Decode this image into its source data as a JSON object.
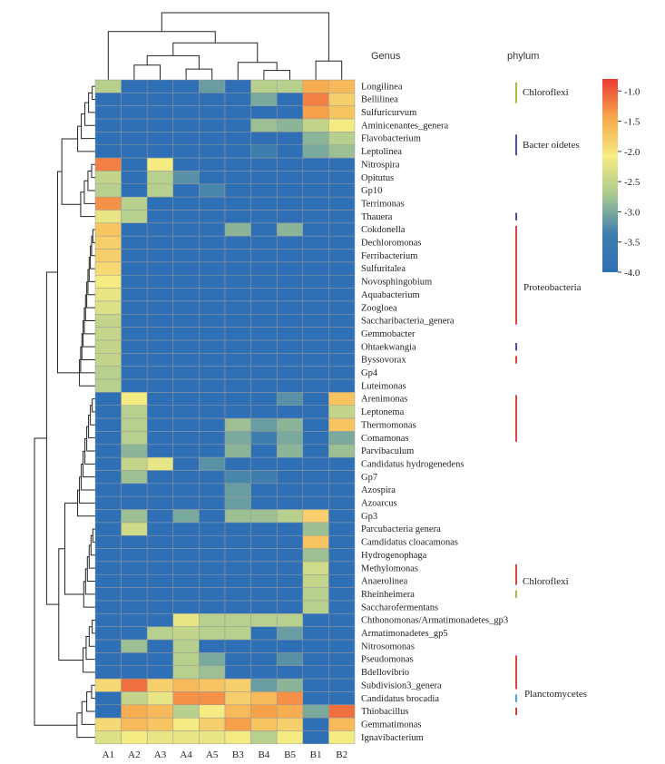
{
  "chart_data": {
    "type": "heatmap",
    "title": "",
    "samples": [
      "A1",
      "A2",
      "A3",
      "A4",
      "A5",
      "B3",
      "B4",
      "B5",
      "B1",
      "B2"
    ],
    "genera": [
      "Longilinea",
      "Bellilinea",
      "Sulfuricurvum",
      "Aminicenantes_genera",
      "Flavobacterium",
      "Leptolinea",
      "Nitrospira",
      "Opitutus",
      "Gp10",
      "Terrimonas",
      "Thauera",
      "Cokdonella",
      "Dechloromonas",
      "Ferribacterium",
      "Sulfuritalea",
      "Novosphingobium",
      "Aquabacterium",
      "Zoogloea",
      "Saccharibacteria_genera",
      "Gemmobacter",
      "Ohtaekwangia",
      "Byssovorax",
      "Gp4",
      "Luteimonas",
      "Arenimonas",
      "Leptonema",
      "Thermomonas",
      "Comamonas",
      "Parvibaculum",
      "Candidatus hydrogenedens",
      "Gp7",
      "Azospira",
      "Azoarcus",
      "Gp3",
      "Parcubacteria genera",
      "Camdidatus cloacamonas",
      "Hydrogenophaga",
      "Methylomonas",
      "Anaerolinea",
      "Rheinheimera",
      "Saccharofermentans",
      "Chthonomonas/Armatimonadetes_gp3",
      "Armatimonadetes_gp5",
      "Nitrosomonas",
      "Pseudomonas",
      "Bdellovibrio",
      "Subdivision3_genera",
      "Candidatus brocadia",
      "Thiobacillus",
      "Gemmatimonas",
      "Ignavibacterium"
    ],
    "values": [
      [
        -2.6,
        -4,
        -4,
        -4,
        -3.1,
        -4,
        -2.6,
        -2.6,
        -1.5,
        -1.6
      ],
      [
        -4,
        -4,
        -4,
        -4,
        -4,
        -4,
        -3,
        -4,
        -1.2,
        -1.8
      ],
      [
        -4,
        -4,
        -4,
        -4,
        -4,
        -4,
        -4,
        -4,
        -1.4,
        -1.7
      ],
      [
        -4,
        -4,
        -4,
        -4,
        -4,
        -4,
        -2.8,
        -2.9,
        -2.5,
        -2.1
      ],
      [
        -4,
        -4,
        -4,
        -4,
        -4,
        -4,
        -4,
        -4,
        -2.9,
        -2.6
      ],
      [
        -4,
        -4,
        -4,
        -4,
        -4,
        -4,
        -3.4,
        -4,
        -3,
        -2.8
      ],
      [
        -1.2,
        -4,
        -2.1,
        -4,
        -4,
        -4,
        -4,
        -4,
        -4,
        -4
      ],
      [
        -2.5,
        -4,
        -2.6,
        -3.2,
        -4,
        -4,
        -4,
        -4,
        -4,
        -4
      ],
      [
        -2.6,
        -4,
        -2.6,
        -4,
        -3.3,
        -4,
        -4,
        -4,
        -4,
        -4
      ],
      [
        -1.3,
        -2.6,
        -4,
        -4,
        -4,
        -4,
        -4,
        -4,
        -4,
        -4
      ],
      [
        -2.2,
        -2.6,
        -4,
        -4,
        -4,
        -4,
        -4,
        -4,
        -4,
        -4
      ],
      [
        -1.7,
        -4,
        -4,
        -4,
        -4,
        -2.9,
        -4,
        -2.9,
        -4,
        -4
      ],
      [
        -1.8,
        -4,
        -4,
        -4,
        -4,
        -4,
        -4,
        -4,
        -4,
        -4
      ],
      [
        -1.8,
        -4,
        -4,
        -4,
        -4,
        -4,
        -4,
        -4,
        -4,
        -4
      ],
      [
        -1.9,
        -4,
        -4,
        -4,
        -4,
        -4,
        -4,
        -4,
        -4,
        -4
      ],
      [
        -2.1,
        -4,
        -4,
        -4,
        -4,
        -4,
        -4,
        -4,
        -4,
        -4
      ],
      [
        -2.2,
        -4,
        -4,
        -4,
        -4,
        -4,
        -4,
        -4,
        -4,
        -4
      ],
      [
        -2.3,
        -4,
        -4,
        -4,
        -4,
        -4,
        -4,
        -4,
        -4,
        -4
      ],
      [
        -2.5,
        -4,
        -4,
        -4,
        -4,
        -4,
        -4,
        -4,
        -4,
        -4
      ],
      [
        -2.5,
        -4,
        -4,
        -4,
        -4,
        -4,
        -4,
        -4,
        -4,
        -4
      ],
      [
        -2.5,
        -4,
        -4,
        -4,
        -4,
        -4,
        -4,
        -4,
        -4,
        -4
      ],
      [
        -2.5,
        -4,
        -4,
        -4,
        -4,
        -4,
        -4,
        -4,
        -4,
        -4
      ],
      [
        -2.6,
        -4,
        -4,
        -4,
        -4,
        -4,
        -4,
        -4,
        -4,
        -4
      ],
      [
        -2.6,
        -4,
        -4,
        -4,
        -4,
        -4,
        -4,
        -4,
        -4,
        -4
      ],
      [
        -4,
        -2.1,
        -4,
        -4,
        -4,
        -4,
        -4,
        -3.2,
        -4,
        -1.7
      ],
      [
        -4,
        -2.6,
        -4,
        -4,
        -4,
        -4,
        -4,
        -4,
        -4,
        -2.5
      ],
      [
        -4,
        -2.6,
        -4,
        -4,
        -4,
        -2.8,
        -3.1,
        -2.9,
        -4,
        -1.7
      ],
      [
        -4,
        -2.6,
        -4,
        -4,
        -4,
        -3,
        -3.4,
        -3,
        -4,
        -3
      ],
      [
        -4,
        -2.9,
        -4,
        -4,
        -4,
        -2.9,
        -4,
        -2.9,
        -4,
        -2.8
      ],
      [
        -4,
        -2.5,
        -2.2,
        -4,
        -3.2,
        -4,
        -4,
        -4,
        -4,
        -4
      ],
      [
        -4,
        -2.8,
        -4,
        -4,
        -4,
        -3.3,
        -3.4,
        -4,
        -4,
        -4
      ],
      [
        -4,
        -4,
        -4,
        -4,
        -4,
        -3.1,
        -4,
        -4,
        -4,
        -4
      ],
      [
        -4,
        -4,
        -4,
        -4,
        -4,
        -3.1,
        -4,
        -4,
        -4,
        -4
      ],
      [
        -4,
        -2.8,
        -4,
        -3,
        -4,
        -2.8,
        -2.8,
        -2.6,
        -1.8,
        -4
      ],
      [
        -4,
        -2.4,
        -4,
        -4,
        -4,
        -4,
        -4,
        -4,
        -2.8,
        -4
      ],
      [
        -4,
        -4,
        -4,
        -4,
        -4,
        -4,
        -4,
        -4,
        -1.7,
        -4
      ],
      [
        -4,
        -4,
        -4,
        -4,
        -4,
        -4,
        -4,
        -4,
        -2.8,
        -4
      ],
      [
        -4,
        -4,
        -4,
        -4,
        -4,
        -4,
        -4,
        -4,
        -2.4,
        -4
      ],
      [
        -4,
        -4,
        -4,
        -4,
        -4,
        -4,
        -4,
        -4,
        -2.5,
        -4
      ],
      [
        -4,
        -4,
        -4,
        -4,
        -4,
        -4,
        -4,
        -4,
        -2.6,
        -4
      ],
      [
        -4,
        -4,
        -4,
        -4,
        -4,
        -4,
        -4,
        -4,
        -2.6,
        -4
      ],
      [
        -4,
        -4,
        -4,
        -2.2,
        -2.6,
        -2.6,
        -2.6,
        -2.6,
        -4,
        -4
      ],
      [
        -4,
        -4,
        -2.6,
        -2.5,
        -2.6,
        -2.6,
        -4,
        -3.1,
        -4,
        -4
      ],
      [
        -4,
        -2.8,
        -4,
        -2.6,
        -4,
        -4,
        -4,
        -4,
        -4,
        -4
      ],
      [
        -4,
        -4,
        -4,
        -2.6,
        -3,
        -4,
        -4,
        -3.2,
        -4,
        -4
      ],
      [
        -4,
        -4,
        -4,
        -2.6,
        -2.8,
        -4,
        -4,
        -4,
        -4,
        -4
      ],
      [
        -1.9,
        -1.1,
        -1.8,
        -1.6,
        -1.7,
        -1.8,
        -3.1,
        -2.9,
        -4,
        -4
      ],
      [
        -4,
        -2.5,
        -2.2,
        -1.3,
        -1.3,
        -1.8,
        -1.6,
        -1.3,
        -4,
        -4
      ],
      [
        -4,
        -1.5,
        -1.6,
        -2.6,
        -2.1,
        -1.6,
        -1.4,
        -1.5,
        -3,
        -1.1
      ],
      [
        -1.9,
        -1.6,
        -1.7,
        -2.1,
        -1.8,
        -1.4,
        -1.7,
        -1.8,
        -4,
        -1.6
      ],
      [
        -2.3,
        -2.1,
        -2.2,
        -2.2,
        -2.2,
        -2.1,
        -2.6,
        -2.1,
        -4,
        -2.1
      ]
    ],
    "colorbar": {
      "ticks": [
        "-1.0",
        "-1.5",
        "-2.0",
        "-2.5",
        "-3.0",
        "-3.5",
        "-4.0"
      ],
      "range": [
        -4.0,
        -0.8
      ],
      "stops": [
        "#2e6fb6",
        "#3e7fae",
        "#a9c98f",
        "#f6ec83",
        "#f7a84c",
        "#ea3c33"
      ]
    },
    "headers": {
      "genus": "Genus",
      "phylum": "phylum"
    },
    "phyla": [
      {
        "name": "Chloroflexi",
        "color": "#a0c040"
      },
      {
        "name": "Bacter oidetes",
        "color": "#4b4fa3"
      },
      {
        "name": "Proteobacteria",
        "color": "#d9463c"
      },
      {
        "name": "Chloroflexi",
        "color": "#a0c040"
      },
      {
        "name": "Planctomycetes",
        "color": "#4a9fd4"
      }
    ],
    "phylum_bars": [
      {
        "color": "#a0c040",
        "from_row": 0,
        "to_row": 1
      },
      {
        "color": "#4b4fa3",
        "from_row": 4,
        "to_row": 5
      },
      {
        "color": "#4b4fa3",
        "from_row": 10,
        "to_row": 10
      },
      {
        "color": "#d9463c",
        "from_row": 11,
        "to_row": 18
      },
      {
        "color": "#4b4fa3",
        "from_row": 20,
        "to_row": 20
      },
      {
        "color": "#d9463c",
        "from_row": 21,
        "to_row": 21
      },
      {
        "color": "#d9463c",
        "from_row": 24,
        "to_row": 27
      },
      {
        "color": "#d9463c",
        "from_row": 37,
        "to_row": 38
      },
      {
        "color": "#a0c040",
        "from_row": 39,
        "to_row": 39
      },
      {
        "color": "#d9463c",
        "from_row": 44,
        "to_row": 46
      },
      {
        "color": "#4a9fd4",
        "from_row": 47,
        "to_row": 47
      },
      {
        "color": "#d9463c",
        "from_row": 48,
        "to_row": 48
      }
    ]
  }
}
